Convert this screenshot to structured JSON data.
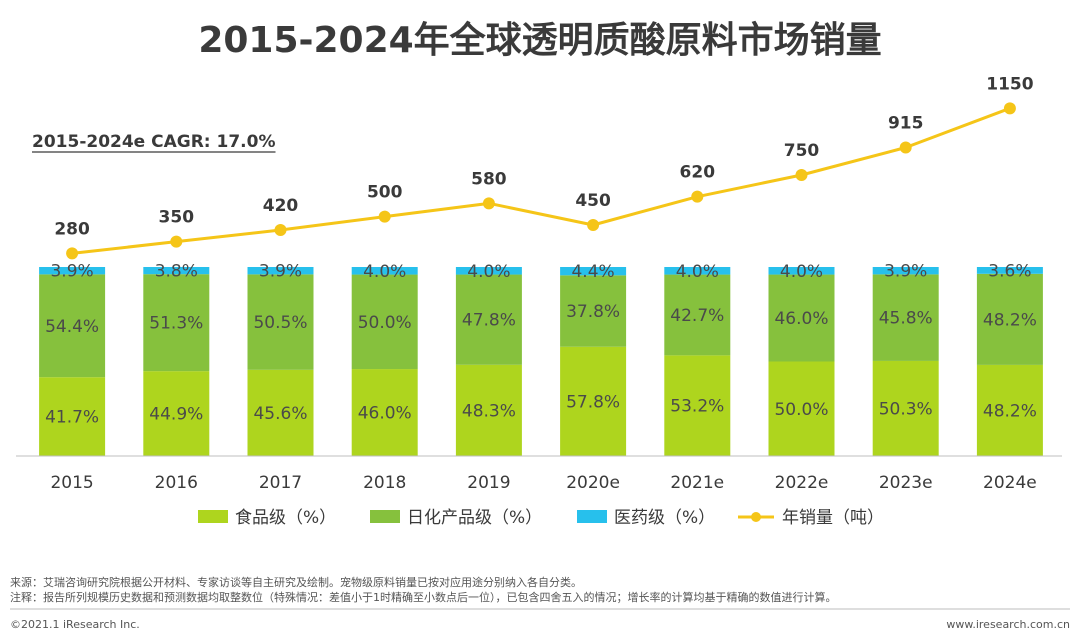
{
  "colors": {
    "food": "#aed51e",
    "daily": "#86c13d",
    "pharma": "#27c0ec",
    "line": "#f5c518",
    "text": "#3a3a3a"
  },
  "chart_data": {
    "type": "bar",
    "stacked": true,
    "title": "2015-2024年全球透明质酸原料市场销量",
    "cagr": "2015-2024e CAGR: 17.0%",
    "categories": [
      "2015",
      "2016",
      "2017",
      "2018",
      "2019",
      "2020e",
      "2021e",
      "2022e",
      "2023e",
      "2024e"
    ],
    "series": [
      {
        "name": "食品级（%）",
        "key": "food",
        "values": [
          41.7,
          44.9,
          45.6,
          46.0,
          48.3,
          57.8,
          53.2,
          50.0,
          50.3,
          48.2
        ],
        "labels": [
          "41.7%",
          "44.9%",
          "45.6%",
          "46.0%",
          "48.3%",
          "57.8%",
          "53.2%",
          "50.0%",
          "50.3%",
          "48.2%"
        ]
      },
      {
        "name": "日化产品级（%）",
        "key": "daily",
        "values": [
          54.4,
          51.3,
          50.5,
          50.0,
          47.8,
          37.8,
          42.7,
          46.0,
          45.8,
          48.2
        ],
        "labels": [
          "54.4%",
          "51.3%",
          "50.5%",
          "50.0%",
          "47.8%",
          "37.8%",
          "42.7%",
          "46.0%",
          "45.8%",
          "48.2%"
        ]
      },
      {
        "name": "医药级（%）",
        "key": "pharma",
        "values": [
          3.9,
          3.8,
          3.9,
          4.0,
          4.0,
          4.4,
          4.0,
          4.0,
          3.9,
          3.6
        ],
        "labels": [
          "3.9%",
          "3.8%",
          "3.9%",
          "4.0%",
          "4.0%",
          "4.4%",
          "4.0%",
          "4.0%",
          "3.9%",
          "3.6%"
        ]
      }
    ],
    "line": {
      "name": "年销量（吨）",
      "values": [
        280,
        350,
        420,
        500,
        580,
        450,
        620,
        750,
        915,
        1150
      ],
      "labels": [
        "280",
        "350",
        "420",
        "500",
        "580",
        "450",
        "620",
        "750",
        "915",
        "1150"
      ]
    },
    "ylim": [
      0,
      100
    ],
    "line_ylim": [
      0,
      1200
    ]
  },
  "notes": {
    "source": "来源：艾瑞咨询研究院根据公开材料、专家访谈等自主研究及绘制。宠物级原料销量已按对应用途分别纳入各自分类。",
    "remark": "注释：报告所列规模历史数据和预测数据均取整数位（特殊情况：差值小于1时精确至小数点后一位），已包含四舍五入的情况；增长率的计算均基于精确的数值进行计算。"
  },
  "footer": {
    "copyright": "©2021.1 iResearch Inc.",
    "website": "www.iresearch.com.cn"
  }
}
